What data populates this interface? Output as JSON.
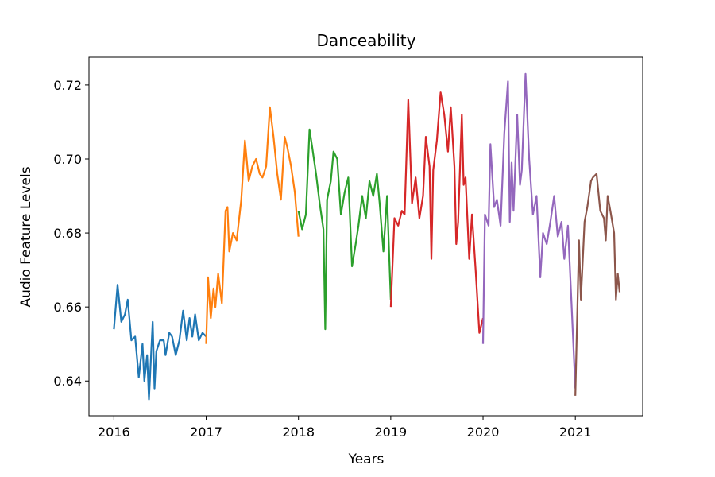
{
  "chart_data": {
    "type": "line",
    "title": "Danceability",
    "xlabel": "Years",
    "ylabel": "Audio Feature Levels",
    "xlim": [
      2015.73,
      2021.73
    ],
    "ylim": [
      0.6306,
      0.7275
    ],
    "x_ticks": [
      2016,
      2017,
      2018,
      2019,
      2020,
      2021
    ],
    "y_ticks": [
      0.64,
      0.66,
      0.68,
      0.7,
      0.72
    ],
    "grid": false,
    "legend": "none",
    "series": [
      {
        "color": "#1f77b4",
        "points": [
          [
            2016.0,
            0.654
          ],
          [
            2016.04,
            0.666
          ],
          [
            2016.08,
            0.656
          ],
          [
            2016.12,
            0.658
          ],
          [
            2016.15,
            0.662
          ],
          [
            2016.19,
            0.651
          ],
          [
            2016.23,
            0.652
          ],
          [
            2016.27,
            0.641
          ],
          [
            2016.31,
            0.65
          ],
          [
            2016.33,
            0.64
          ],
          [
            2016.36,
            0.647
          ],
          [
            2016.38,
            0.635
          ],
          [
            2016.42,
            0.656
          ],
          [
            2016.44,
            0.638
          ],
          [
            2016.46,
            0.648
          ],
          [
            2016.5,
            0.651
          ],
          [
            2016.54,
            0.651
          ],
          [
            2016.56,
            0.647
          ],
          [
            2016.6,
            0.653
          ],
          [
            2016.63,
            0.652
          ],
          [
            2016.67,
            0.647
          ],
          [
            2016.71,
            0.651
          ],
          [
            2016.75,
            0.659
          ],
          [
            2016.79,
            0.651
          ],
          [
            2016.82,
            0.657
          ],
          [
            2016.85,
            0.652
          ],
          [
            2016.88,
            0.658
          ],
          [
            2016.92,
            0.651
          ],
          [
            2016.96,
            0.653
          ],
          [
            2017.0,
            0.652
          ]
        ]
      },
      {
        "color": "#ff7f0e",
        "points": [
          [
            2017.0,
            0.65
          ],
          [
            2017.02,
            0.668
          ],
          [
            2017.05,
            0.657
          ],
          [
            2017.08,
            0.665
          ],
          [
            2017.1,
            0.66
          ],
          [
            2017.13,
            0.669
          ],
          [
            2017.17,
            0.661
          ],
          [
            2017.21,
            0.686
          ],
          [
            2017.23,
            0.687
          ],
          [
            2017.25,
            0.675
          ],
          [
            2017.29,
            0.68
          ],
          [
            2017.33,
            0.678
          ],
          [
            2017.38,
            0.689
          ],
          [
            2017.42,
            0.705
          ],
          [
            2017.46,
            0.694
          ],
          [
            2017.5,
            0.698
          ],
          [
            2017.54,
            0.7
          ],
          [
            2017.58,
            0.696
          ],
          [
            2017.61,
            0.695
          ],
          [
            2017.65,
            0.698
          ],
          [
            2017.69,
            0.714
          ],
          [
            2017.73,
            0.706
          ],
          [
            2017.77,
            0.696
          ],
          [
            2017.81,
            0.689
          ],
          [
            2017.85,
            0.706
          ],
          [
            2017.88,
            0.703
          ],
          [
            2017.92,
            0.698
          ],
          [
            2017.96,
            0.691
          ],
          [
            2018.0,
            0.679
          ]
        ]
      },
      {
        "color": "#2ca02c",
        "points": [
          [
            2018.0,
            0.686
          ],
          [
            2018.04,
            0.681
          ],
          [
            2018.08,
            0.685
          ],
          [
            2018.12,
            0.708
          ],
          [
            2018.15,
            0.703
          ],
          [
            2018.19,
            0.696
          ],
          [
            2018.23,
            0.688
          ],
          [
            2018.27,
            0.681
          ],
          [
            2018.29,
            0.654
          ],
          [
            2018.31,
            0.689
          ],
          [
            2018.35,
            0.694
          ],
          [
            2018.38,
            0.702
          ],
          [
            2018.42,
            0.7
          ],
          [
            2018.46,
            0.685
          ],
          [
            2018.5,
            0.691
          ],
          [
            2018.54,
            0.695
          ],
          [
            2018.58,
            0.671
          ],
          [
            2018.62,
            0.677
          ],
          [
            2018.65,
            0.682
          ],
          [
            2018.69,
            0.69
          ],
          [
            2018.73,
            0.684
          ],
          [
            2018.77,
            0.694
          ],
          [
            2018.81,
            0.69
          ],
          [
            2018.85,
            0.696
          ],
          [
            2018.88,
            0.688
          ],
          [
            2018.92,
            0.675
          ],
          [
            2018.96,
            0.69
          ],
          [
            2019.0,
            0.662
          ]
        ]
      },
      {
        "color": "#d62728",
        "points": [
          [
            2019.0,
            0.66
          ],
          [
            2019.04,
            0.684
          ],
          [
            2019.08,
            0.682
          ],
          [
            2019.12,
            0.686
          ],
          [
            2019.15,
            0.685
          ],
          [
            2019.19,
            0.716
          ],
          [
            2019.23,
            0.688
          ],
          [
            2019.27,
            0.695
          ],
          [
            2019.31,
            0.684
          ],
          [
            2019.35,
            0.69
          ],
          [
            2019.38,
            0.706
          ],
          [
            2019.42,
            0.698
          ],
          [
            2019.44,
            0.673
          ],
          [
            2019.46,
            0.697
          ],
          [
            2019.5,
            0.705
          ],
          [
            2019.54,
            0.718
          ],
          [
            2019.58,
            0.712
          ],
          [
            2019.62,
            0.702
          ],
          [
            2019.65,
            0.714
          ],
          [
            2019.69,
            0.698
          ],
          [
            2019.71,
            0.677
          ],
          [
            2019.73,
            0.683
          ],
          [
            2019.77,
            0.712
          ],
          [
            2019.79,
            0.693
          ],
          [
            2019.81,
            0.695
          ],
          [
            2019.85,
            0.673
          ],
          [
            2019.88,
            0.685
          ],
          [
            2019.92,
            0.67
          ],
          [
            2019.96,
            0.653
          ],
          [
            2020.0,
            0.657
          ]
        ]
      },
      {
        "color": "#9467bd",
        "points": [
          [
            2020.0,
            0.65
          ],
          [
            2020.02,
            0.685
          ],
          [
            2020.06,
            0.682
          ],
          [
            2020.08,
            0.704
          ],
          [
            2020.12,
            0.687
          ],
          [
            2020.15,
            0.689
          ],
          [
            2020.19,
            0.682
          ],
          [
            2020.23,
            0.707
          ],
          [
            2020.27,
            0.721
          ],
          [
            2020.29,
            0.683
          ],
          [
            2020.31,
            0.699
          ],
          [
            2020.33,
            0.686
          ],
          [
            2020.37,
            0.712
          ],
          [
            2020.4,
            0.693
          ],
          [
            2020.42,
            0.697
          ],
          [
            2020.46,
            0.723
          ],
          [
            2020.5,
            0.7
          ],
          [
            2020.54,
            0.685
          ],
          [
            2020.58,
            0.69
          ],
          [
            2020.62,
            0.668
          ],
          [
            2020.65,
            0.68
          ],
          [
            2020.69,
            0.677
          ],
          [
            2020.73,
            0.683
          ],
          [
            2020.77,
            0.69
          ],
          [
            2020.81,
            0.679
          ],
          [
            2020.85,
            0.683
          ],
          [
            2020.88,
            0.673
          ],
          [
            2020.92,
            0.682
          ],
          [
            2020.96,
            0.66
          ],
          [
            2021.0,
            0.638
          ]
        ]
      },
      {
        "color": "#8c564b",
        "points": [
          [
            2021.0,
            0.636
          ],
          [
            2021.04,
            0.678
          ],
          [
            2021.06,
            0.662
          ],
          [
            2021.1,
            0.683
          ],
          [
            2021.13,
            0.687
          ],
          [
            2021.17,
            0.694
          ],
          [
            2021.19,
            0.695
          ],
          [
            2021.23,
            0.696
          ],
          [
            2021.27,
            0.686
          ],
          [
            2021.31,
            0.684
          ],
          [
            2021.33,
            0.678
          ],
          [
            2021.35,
            0.69
          ],
          [
            2021.38,
            0.686
          ],
          [
            2021.42,
            0.68
          ],
          [
            2021.44,
            0.662
          ],
          [
            2021.46,
            0.669
          ],
          [
            2021.48,
            0.664
          ]
        ]
      }
    ]
  }
}
